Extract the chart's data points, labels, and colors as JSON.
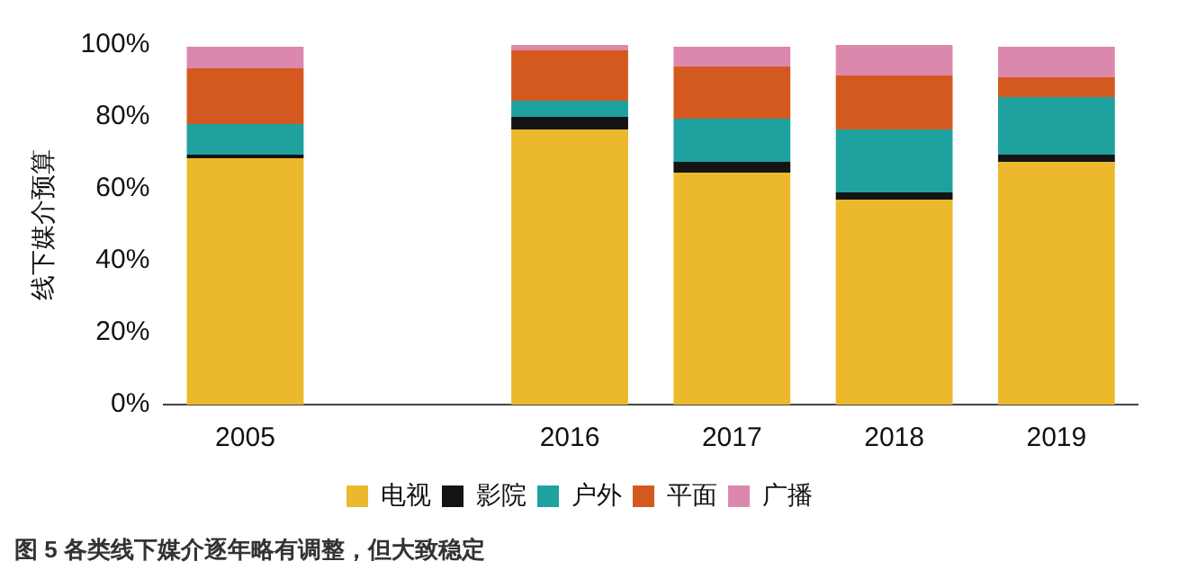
{
  "chart_data": {
    "type": "bar",
    "stacked": true,
    "ylabel": "线下媒介预算",
    "categories": [
      "2005",
      null,
      "2016",
      "2017",
      "2018",
      "2019"
    ],
    "series": [
      {
        "name": "电视",
        "color": "#ecb92c",
        "values": [
          68.5,
          null,
          76.5,
          64.5,
          57,
          67.5
        ]
      },
      {
        "name": "影院",
        "color": "#141414",
        "values": [
          1,
          null,
          3.5,
          3,
          2,
          2
        ]
      },
      {
        "name": "户外",
        "color": "#1fa1a0",
        "values": [
          8.5,
          null,
          4.5,
          12,
          17.5,
          16
        ]
      },
      {
        "name": "平面",
        "color": "#d4591e",
        "values": [
          15.5,
          null,
          14,
          14.5,
          15,
          5.5
        ]
      },
      {
        "name": "广播",
        "color": "#dc88ac",
        "values": [
          6,
          null,
          1.5,
          5.5,
          8.5,
          8.5
        ]
      }
    ],
    "ylim": [
      0,
      100
    ],
    "yticks": [
      {
        "value": 0,
        "label": "0%"
      },
      {
        "value": 20,
        "label": "20%"
      },
      {
        "value": 40,
        "label": "40%"
      },
      {
        "value": 60,
        "label": "60%"
      },
      {
        "value": 80,
        "label": "80%"
      },
      {
        "value": 100,
        "label": "100%"
      }
    ],
    "grid": false,
    "legend": "bottom",
    "annotations": [
      "图 5 各类线下媒介逐年略有调整，但大致稳定"
    ]
  }
}
